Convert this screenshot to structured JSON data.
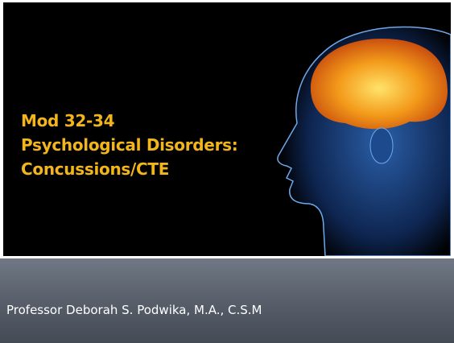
{
  "slide": {
    "title_lines": [
      "Mod 32-34",
      "Psychological Disorders:",
      "Concussions/CTE"
    ],
    "subtitle": "Professor Deborah S. Podwika, M.A., C.S.M"
  }
}
